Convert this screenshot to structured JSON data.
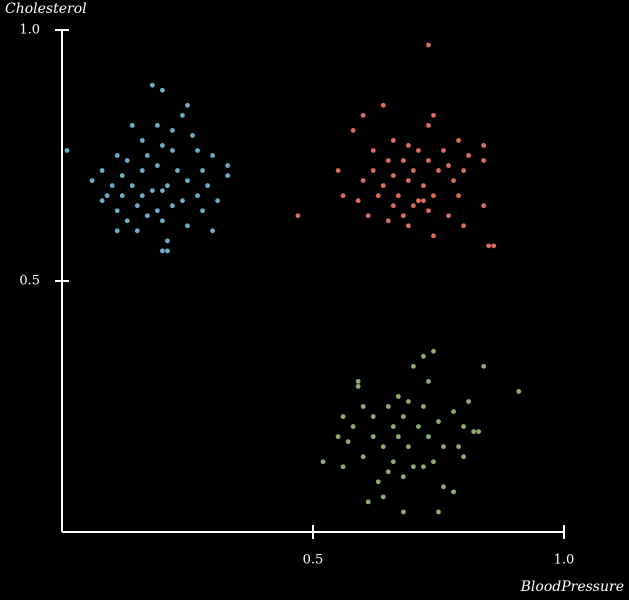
{
  "chart_data": {
    "type": "scatter",
    "x_label": "BloodPressure",
    "y_label": "Cholesterol",
    "xlim": [
      0,
      1
    ],
    "ylim": [
      0,
      1
    ],
    "xticks": [
      0.5,
      {
        "value": 1,
        "label": "1.0"
      }
    ],
    "yticks": [
      0.5,
      {
        "value": 1,
        "label": "1.0"
      }
    ],
    "series": [
      {
        "color": "#6aaec8",
        "x": [
          0.01,
          0.18,
          0.2,
          0.25,
          0.24,
          0.14,
          0.19,
          0.22,
          0.16,
          0.2,
          0.26,
          0.11,
          0.13,
          0.17,
          0.22,
          0.27,
          0.3,
          0.33,
          0.08,
          0.12,
          0.16,
          0.19,
          0.23,
          0.28,
          0.33,
          0.06,
          0.1,
          0.14,
          0.18,
          0.21,
          0.25,
          0.29,
          0.12,
          0.16,
          0.2,
          0.24,
          0.08,
          0.11,
          0.15,
          0.19,
          0.22,
          0.28,
          0.31,
          0.13,
          0.17,
          0.2,
          0.25,
          0.11,
          0.15,
          0.3,
          0.21,
          0.2,
          0.21,
          0.09,
          0.27
        ],
        "values": [
          0.76,
          0.89,
          0.88,
          0.85,
          0.83,
          0.81,
          0.81,
          0.8,
          0.78,
          0.77,
          0.79,
          0.75,
          0.74,
          0.75,
          0.76,
          0.76,
          0.75,
          0.73,
          0.72,
          0.71,
          0.72,
          0.73,
          0.72,
          0.72,
          0.71,
          0.7,
          0.69,
          0.69,
          0.68,
          0.69,
          0.7,
          0.69,
          0.67,
          0.67,
          0.68,
          0.66,
          0.66,
          0.64,
          0.65,
          0.64,
          0.65,
          0.64,
          0.66,
          0.62,
          0.63,
          0.62,
          0.61,
          0.6,
          0.6,
          0.6,
          0.58,
          0.56,
          0.56,
          0.67,
          0.67
        ]
      },
      {
        "color": "#dc6e5c",
        "x": [
          0.73,
          0.64,
          0.6,
          0.74,
          0.58,
          0.73,
          0.79,
          0.84,
          0.66,
          0.69,
          0.62,
          0.71,
          0.76,
          0.81,
          0.65,
          0.68,
          0.73,
          0.77,
          0.84,
          0.55,
          0.62,
          0.66,
          0.7,
          0.75,
          0.8,
          0.6,
          0.64,
          0.69,
          0.72,
          0.78,
          0.63,
          0.67,
          0.71,
          0.74,
          0.79,
          0.56,
          0.59,
          0.7,
          0.73,
          0.68,
          0.77,
          0.84,
          0.61,
          0.65,
          0.69,
          0.8,
          0.74,
          0.47,
          0.85,
          0.86,
          0.72,
          0.66
        ],
        "values": [
          0.97,
          0.85,
          0.83,
          0.83,
          0.8,
          0.81,
          0.78,
          0.77,
          0.78,
          0.77,
          0.76,
          0.76,
          0.76,
          0.75,
          0.74,
          0.74,
          0.74,
          0.73,
          0.74,
          0.72,
          0.72,
          0.71,
          0.72,
          0.72,
          0.72,
          0.7,
          0.69,
          0.7,
          0.69,
          0.7,
          0.67,
          0.67,
          0.66,
          0.67,
          0.67,
          0.67,
          0.66,
          0.65,
          0.64,
          0.63,
          0.63,
          0.65,
          0.63,
          0.62,
          0.61,
          0.61,
          0.59,
          0.63,
          0.57,
          0.57,
          0.66,
          0.65
        ]
      },
      {
        "color": "#8fad6e",
        "x": [
          0.74,
          0.72,
          0.7,
          0.84,
          0.59,
          0.73,
          0.91,
          0.59,
          0.67,
          0.69,
          0.81,
          0.6,
          0.65,
          0.72,
          0.78,
          0.56,
          0.62,
          0.68,
          0.75,
          0.58,
          0.66,
          0.71,
          0.8,
          0.55,
          0.62,
          0.67,
          0.73,
          0.83,
          0.57,
          0.64,
          0.69,
          0.76,
          0.79,
          0.52,
          0.6,
          0.66,
          0.7,
          0.74,
          0.8,
          0.56,
          0.65,
          0.72,
          0.63,
          0.68,
          0.76,
          0.64,
          0.78,
          0.61,
          0.75,
          0.68,
          0.82
        ],
        "values": [
          0.36,
          0.35,
          0.33,
          0.33,
          0.3,
          0.3,
          0.28,
          0.29,
          0.27,
          0.26,
          0.26,
          0.25,
          0.25,
          0.25,
          0.24,
          0.23,
          0.23,
          0.23,
          0.22,
          0.21,
          0.21,
          0.21,
          0.21,
          0.19,
          0.19,
          0.19,
          0.19,
          0.2,
          0.18,
          0.17,
          0.17,
          0.17,
          0.17,
          0.14,
          0.15,
          0.14,
          0.13,
          0.14,
          0.15,
          0.13,
          0.12,
          0.13,
          0.1,
          0.11,
          0.09,
          0.07,
          0.08,
          0.06,
          0.04,
          0.04,
          0.2
        ]
      }
    ]
  }
}
